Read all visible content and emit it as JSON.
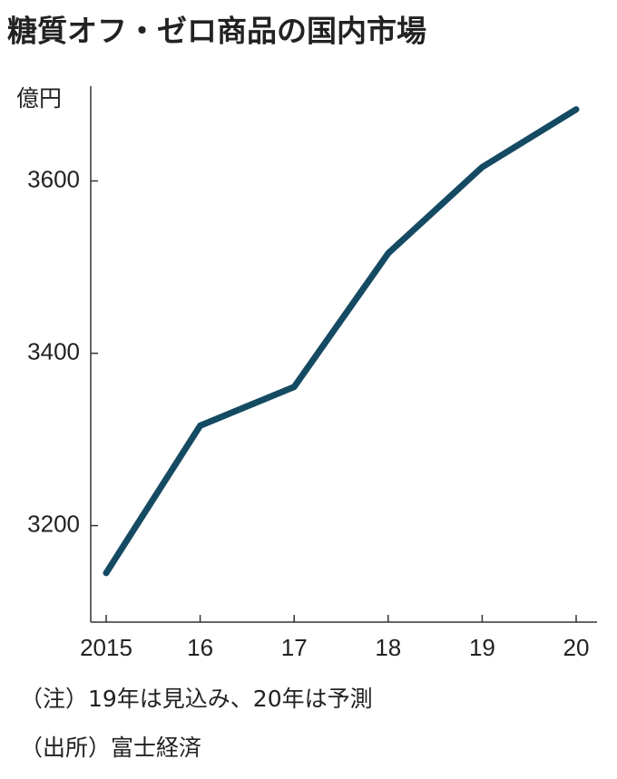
{
  "chart_data": {
    "type": "line",
    "title": "糖質オフ・ゼロ商品の国内市場",
    "unit_label": "億円",
    "categories": [
      "2015",
      "16",
      "17",
      "18",
      "19",
      "20"
    ],
    "values": [
      3145,
      3316,
      3361,
      3516,
      3616,
      3683
    ],
    "color": "#154a63",
    "ylim": [
      3088,
      3710
    ],
    "yticks": [
      3200,
      3400,
      3600
    ],
    "grid": false,
    "notes": [
      "（注）19年は見込み、20年は予測",
      "（出所）富士経済"
    ]
  }
}
